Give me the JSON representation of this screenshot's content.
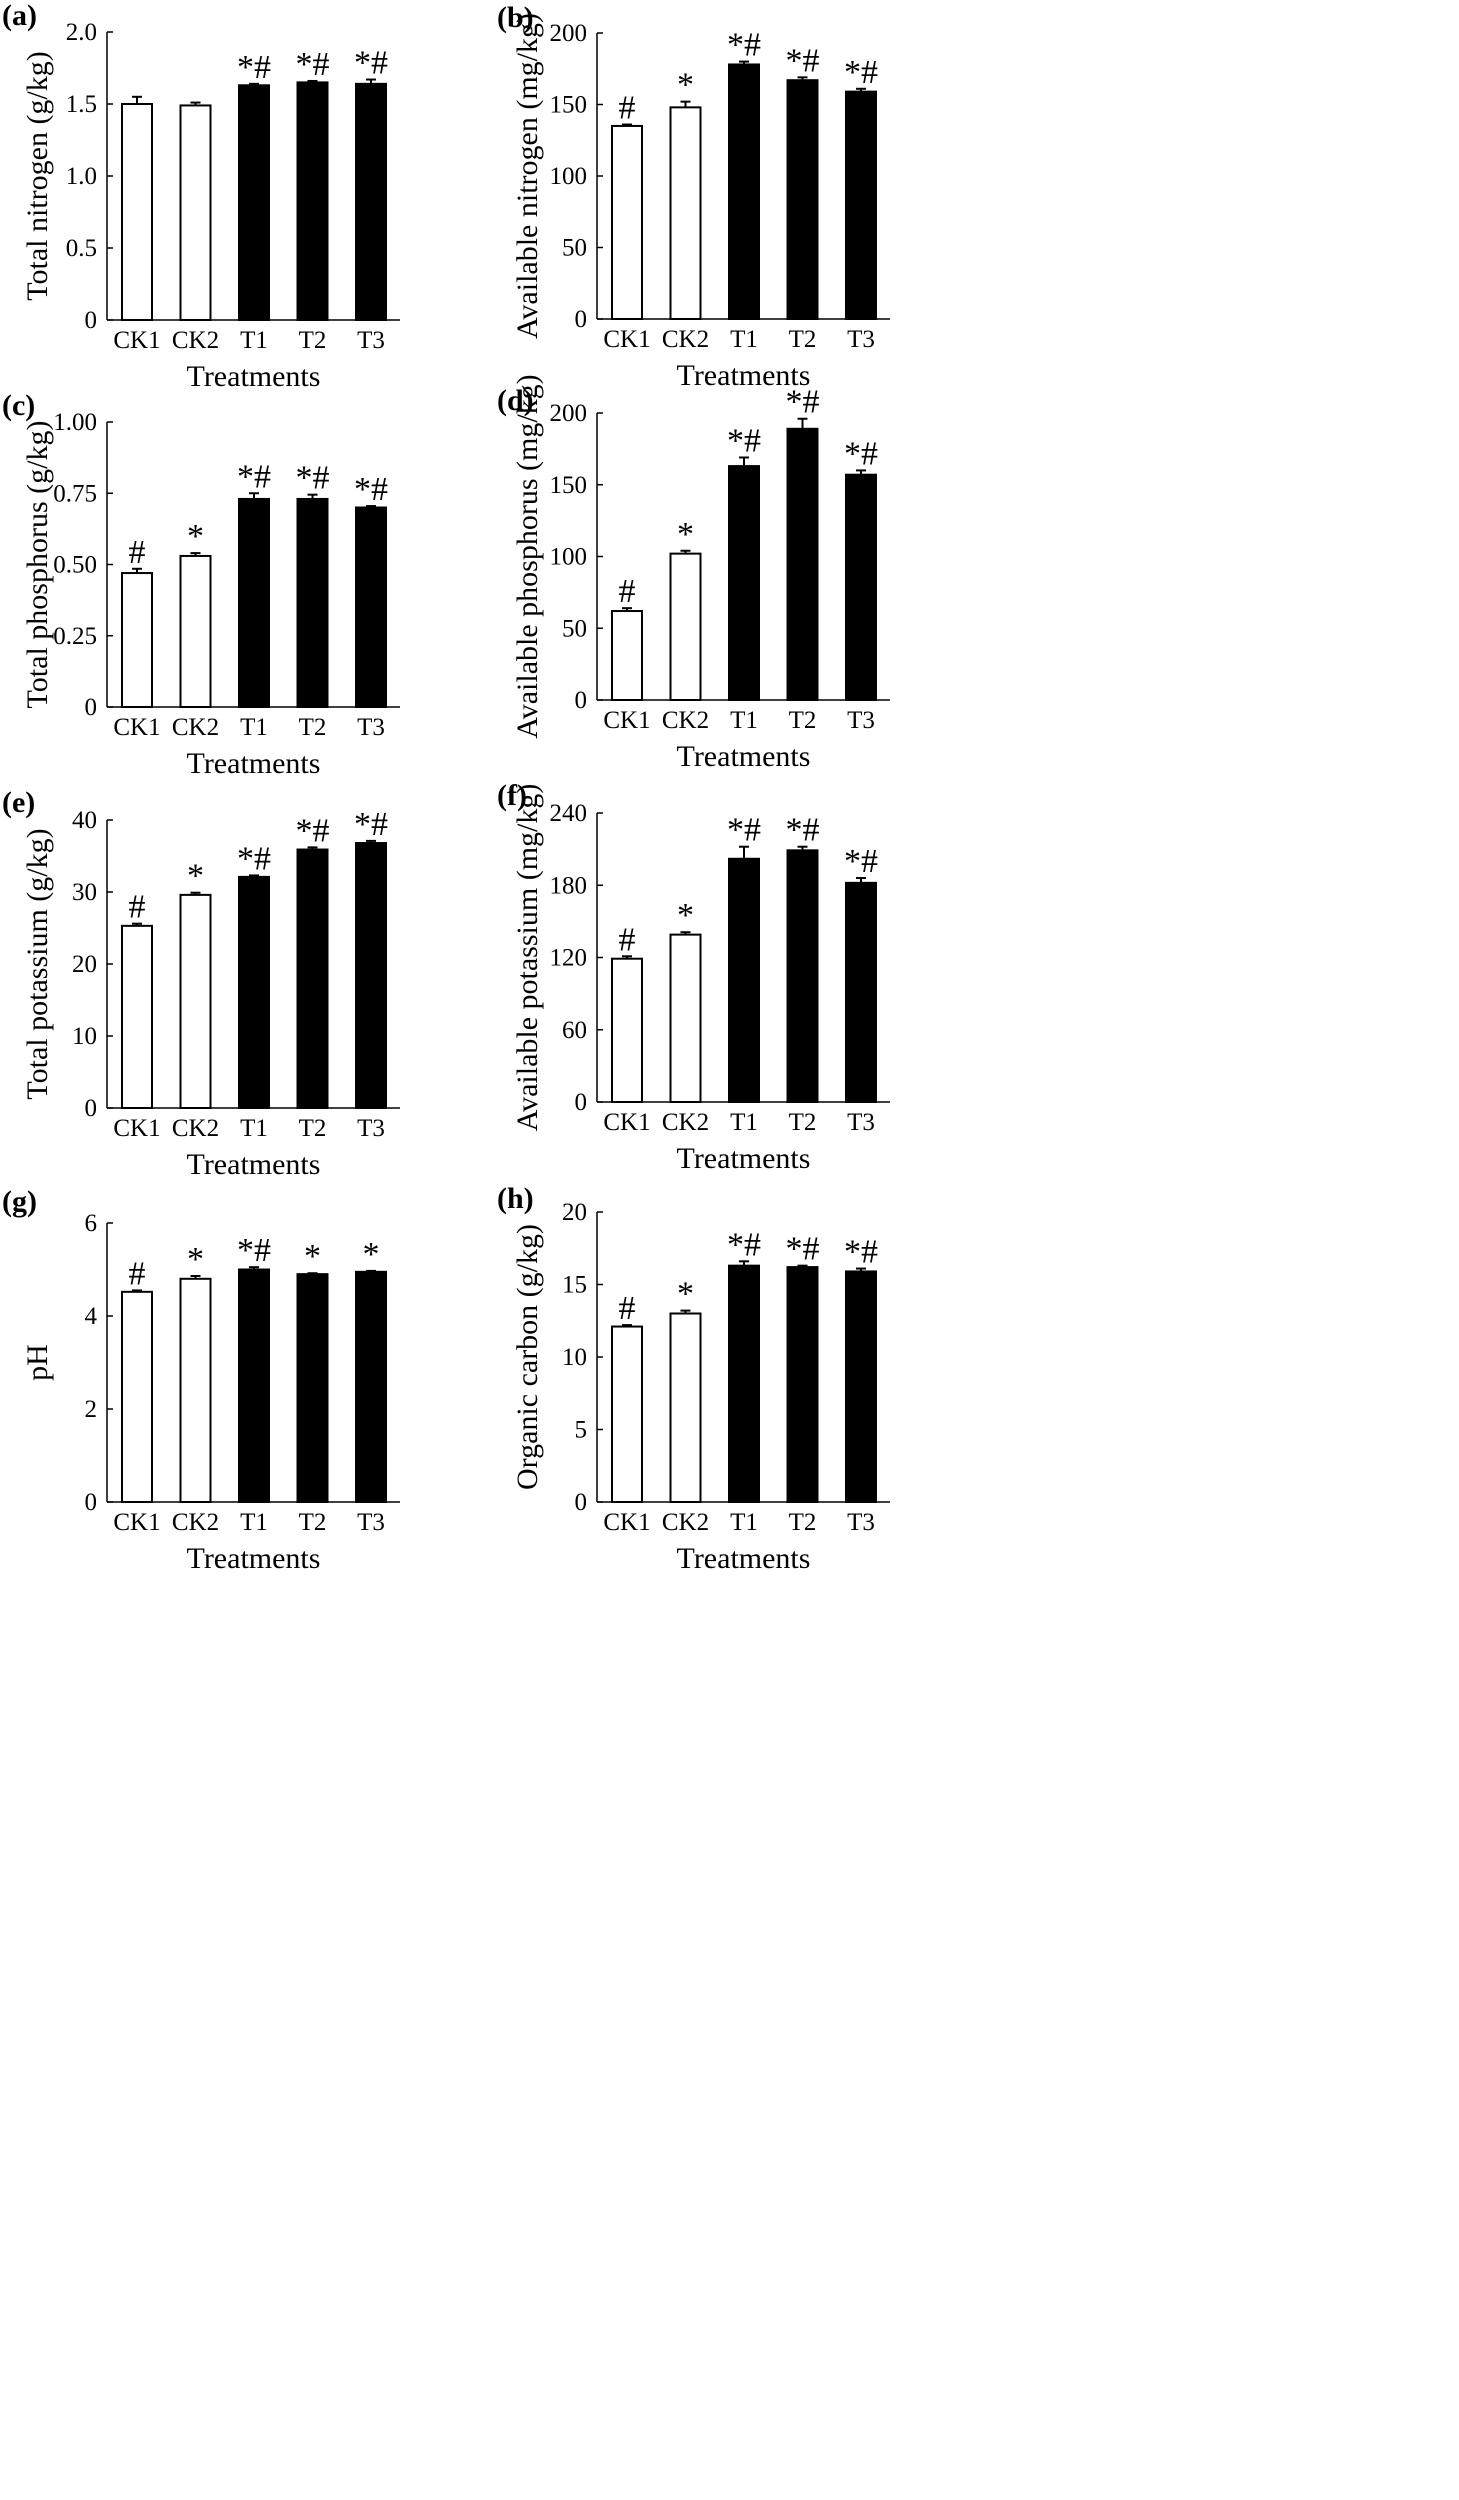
{
  "figure": {
    "categories": [
      "CK1",
      "CK2",
      "T1",
      "T2",
      "T3"
    ],
    "bar_colors": [
      "#ffffff",
      "#ffffff",
      "#000000",
      "#000000",
      "#000000"
    ],
    "axis_color": "#000000"
  },
  "chart_data": [
    {
      "panel": "(a)",
      "type": "bar",
      "categories": [
        "CK1",
        "CK2",
        "T1",
        "T2",
        "T3"
      ],
      "values": [
        1.5,
        1.49,
        1.63,
        1.65,
        1.64
      ],
      "errors": [
        0.05,
        0.02,
        0.01,
        0.01,
        0.03
      ],
      "significance": [
        "",
        "",
        "*#",
        "*#",
        "*#"
      ],
      "ylabel": "Total nitrogen (g/kg)",
      "xlabel": "Treatments",
      "ylim": [
        0,
        2.0
      ],
      "yticks": [
        "0",
        "0.5",
        "1.0",
        "1.5",
        "2.0"
      ]
    },
    {
      "panel": "(b)",
      "type": "bar",
      "categories": [
        "CK1",
        "CK2",
        "T1",
        "T2",
        "T3"
      ],
      "values": [
        135,
        148,
        178,
        167,
        159
      ],
      "errors": [
        1,
        4,
        2,
        2,
        2
      ],
      "significance": [
        "#",
        "*",
        "*#",
        "*#",
        "*#"
      ],
      "ylabel": "Available nitrogen (mg/kg)",
      "xlabel": "Treatments",
      "ylim": [
        0,
        200
      ],
      "yticks": [
        "0",
        "50",
        "100",
        "150",
        "200"
      ]
    },
    {
      "panel": "(c)",
      "type": "bar",
      "categories": [
        "CK1",
        "CK2",
        "T1",
        "T2",
        "T3"
      ],
      "values": [
        0.47,
        0.53,
        0.73,
        0.73,
        0.7
      ],
      "errors": [
        0.015,
        0.01,
        0.02,
        0.015,
        0.005
      ],
      "significance": [
        "#",
        "*",
        "*#",
        "*#",
        "*#"
      ],
      "ylabel": "Total phosphorus (g/kg)",
      "xlabel": "Treatments",
      "ylim": [
        0,
        1.0
      ],
      "yticks": [
        "0",
        "0.25",
        "0.50",
        "0.75",
        "1.00"
      ]
    },
    {
      "panel": "(d)",
      "type": "bar",
      "categories": [
        "CK1",
        "CK2",
        "T1",
        "T2",
        "T3"
      ],
      "values": [
        62,
        102,
        163,
        189,
        157
      ],
      "errors": [
        2,
        2,
        6,
        7,
        3
      ],
      "significance": [
        "#",
        "*",
        "*#",
        "*#",
        "*#"
      ],
      "ylabel": "Available phosphorus (mg/kg)",
      "xlabel": "Treatments",
      "ylim": [
        0,
        200
      ],
      "yticks": [
        "0",
        "50",
        "100",
        "150",
        "200"
      ]
    },
    {
      "panel": "(e)",
      "type": "bar",
      "categories": [
        "CK1",
        "CK2",
        "T1",
        "T2",
        "T3"
      ],
      "values": [
        25.3,
        29.6,
        32.1,
        35.9,
        36.8
      ],
      "errors": [
        0.3,
        0.3,
        0.2,
        0.3,
        0.3
      ],
      "significance": [
        "#",
        "*",
        "*#",
        "*#",
        "*#"
      ],
      "ylabel": "Total potassium (g/kg)",
      "xlabel": "Treatments",
      "ylim": [
        0,
        40
      ],
      "yticks": [
        "0",
        "10",
        "20",
        "30",
        "40"
      ]
    },
    {
      "panel": "(f)",
      "type": "bar",
      "categories": [
        "CK1",
        "CK2",
        "T1",
        "T2",
        "T3"
      ],
      "values": [
        119,
        139,
        202,
        209,
        182
      ],
      "errors": [
        2,
        2,
        10,
        3,
        4
      ],
      "significance": [
        "#",
        "*",
        "*#",
        "*#",
        "*#"
      ],
      "ylabel": "Available potassium (mg/kg)",
      "xlabel": "Treatments",
      "ylim": [
        0,
        240
      ],
      "yticks": [
        "0",
        "60",
        "120",
        "180",
        "240"
      ]
    },
    {
      "panel": "(g)",
      "type": "bar",
      "categories": [
        "CK1",
        "CK2",
        "T1",
        "T2",
        "T3"
      ],
      "values": [
        4.52,
        4.8,
        5.0,
        4.9,
        4.95
      ],
      "errors": [
        0.03,
        0.06,
        0.05,
        0.02,
        0.02
      ],
      "significance": [
        "#",
        "*",
        "*#",
        "*",
        "*"
      ],
      "ylabel": "pH",
      "xlabel": "Treatments",
      "ylim": [
        0,
        6
      ],
      "yticks": [
        "0",
        "2",
        "4",
        "6"
      ]
    },
    {
      "panel": "(h)",
      "type": "bar",
      "categories": [
        "CK1",
        "CK2",
        "T1",
        "T2",
        "T3"
      ],
      "values": [
        12.1,
        13.0,
        16.3,
        16.2,
        15.9
      ],
      "errors": [
        0.1,
        0.2,
        0.3,
        0.1,
        0.2
      ],
      "significance": [
        "#",
        "*",
        "*#",
        "*#",
        "*#"
      ],
      "ylabel": "Organic carbon (g/kg)",
      "xlabel": "Treatments",
      "ylim": [
        0,
        20
      ],
      "yticks": [
        "0",
        "5",
        "10",
        "15",
        "20"
      ]
    }
  ]
}
